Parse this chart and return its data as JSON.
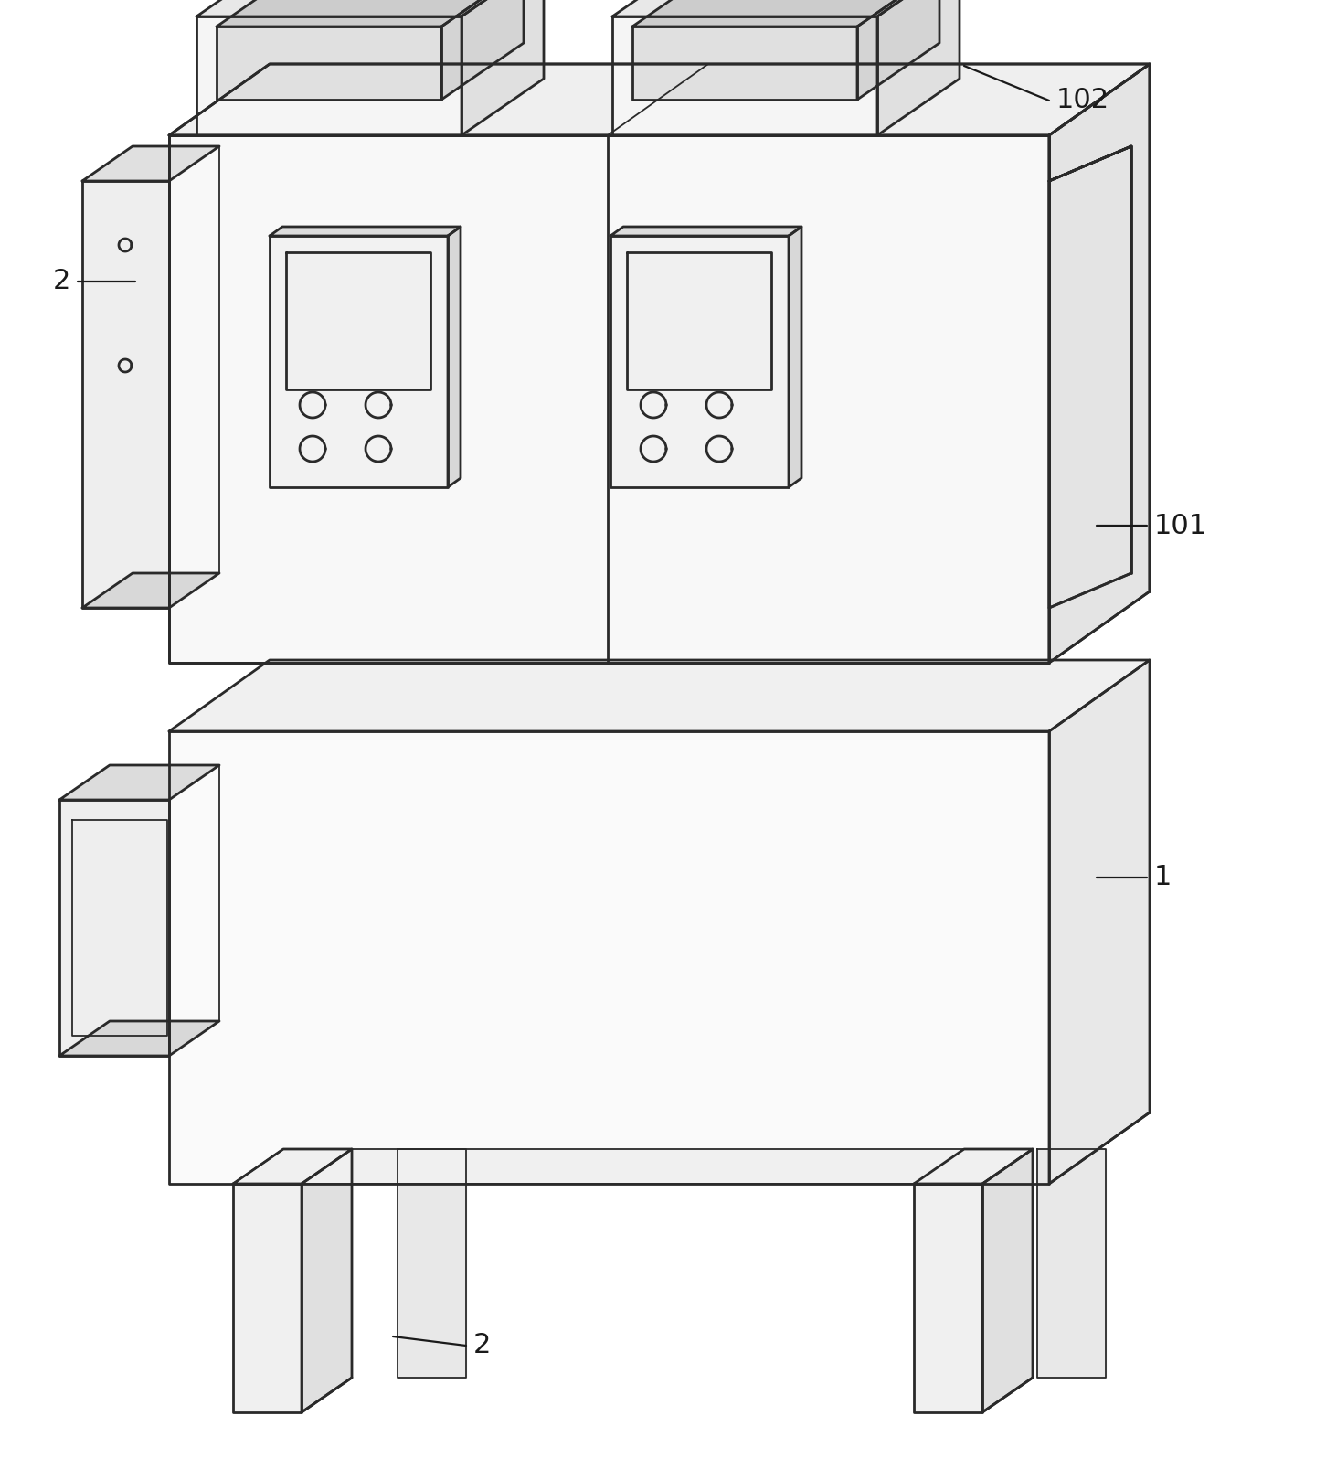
{
  "bg_color": "#ffffff",
  "line_color": "#2a2a2a",
  "line_width": 2.0,
  "thin_line": 1.3,
  "label_color": "#1a1a1a",
  "label_fontsize": 22,
  "annotation_line_color": "#1a1a1a"
}
